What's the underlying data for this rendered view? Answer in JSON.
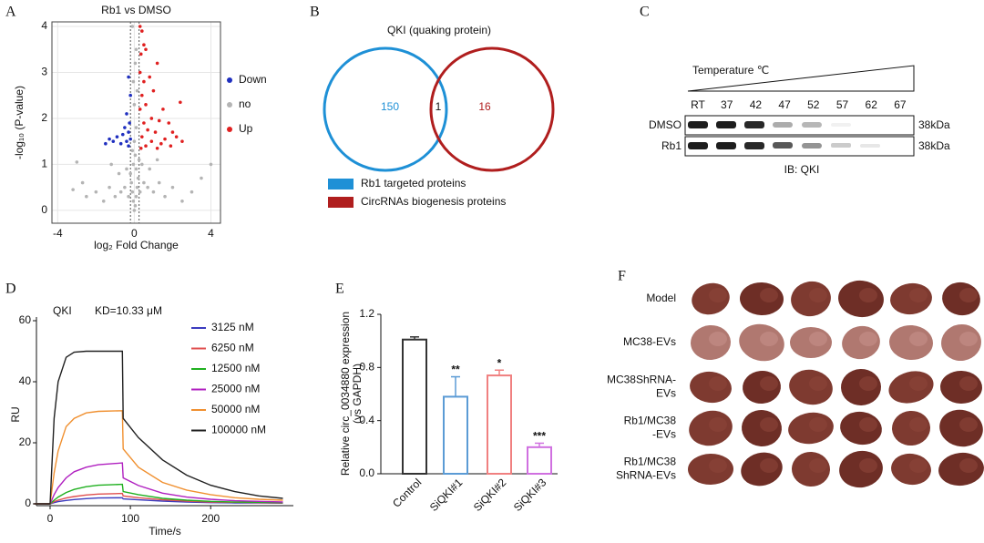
{
  "panels": [
    "A",
    "B",
    "C",
    "D",
    "E",
    "F"
  ],
  "chart_data": [
    {
      "type": "scatter",
      "title": "Rb1 vs DMSO",
      "xlabel": "log₂ Fold Change",
      "ylabel": "-log₁₀ (P-value)",
      "xlim": [
        -4.3,
        4.5
      ],
      "ylim": [
        -0.28,
        4.1
      ],
      "xticks": [
        -4,
        0,
        4
      ],
      "yticks": [
        0,
        1,
        2,
        3,
        4
      ],
      "grid": true,
      "vlines": [
        -0.2,
        0.25
      ],
      "legend": "right",
      "series": [
        {
          "name": "Down",
          "color": "#1f2fbf",
          "x": [
            -0.3,
            -0.2,
            -0.4,
            -0.25,
            -0.5,
            -0.3,
            -0.6,
            -0.2,
            -0.9,
            -1.1,
            -1.5,
            -0.4,
            -0.7,
            -0.3,
            -1.3
          ],
          "values": [
            2.9,
            2.5,
            2.1,
            1.9,
            1.8,
            1.7,
            1.65,
            1.55,
            1.6,
            1.5,
            1.45,
            1.5,
            1.45,
            1.4,
            1.55
          ]
        },
        {
          "name": "no",
          "color": "#b4b4b4",
          "x": [
            0,
            0.05,
            -0.05,
            0.1,
            -0.1,
            0.15,
            -0.15,
            0.2,
            -0.2,
            0.1,
            -0.05,
            0.25,
            0.05,
            -0.1,
            0,
            0.1,
            -0.3,
            0.3,
            -0.5,
            0.5,
            -0.7,
            0.7,
            -1.0,
            1.0,
            -1.3,
            1.3,
            -1.6,
            1.6,
            -2.0,
            2.0,
            -2.5,
            2.5,
            -3.0,
            3.0,
            -0.4,
            0.4,
            -0.8,
            0.8,
            -1.2,
            1.2,
            -2.7,
            -3.2,
            4.0,
            3.5,
            0,
            -0.05,
            0.1,
            -0.1,
            0.05,
            0.15
          ],
          "values": [
            0,
            0.1,
            0.2,
            0.3,
            0.4,
            0.5,
            0.6,
            0.7,
            0.8,
            0.9,
            1.0,
            1.1,
            1.2,
            1.3,
            1.5,
            1.8,
            0.3,
            0.4,
            0.5,
            0.6,
            0.4,
            0.5,
            0.3,
            0.4,
            0.5,
            0.6,
            0.2,
            0.3,
            0.4,
            0.5,
            0.3,
            0.2,
            1.05,
            0.4,
            0.9,
            1.0,
            0.8,
            0.9,
            1.0,
            1.1,
            0.6,
            0.45,
            1.0,
            0.7,
            2.3,
            2.8,
            3.5,
            4.0,
            3.2,
            2.6
          ]
        },
        {
          "name": "Up",
          "color": "#e02020",
          "x": [
            0.3,
            0.4,
            0.5,
            0.35,
            0.6,
            1.2,
            0.3,
            0.5,
            0.8,
            1.0,
            0.4,
            2.4,
            0.6,
            1.5,
            0.3,
            0.9,
            1.3,
            0.5,
            1.8,
            2.0,
            2.2,
            0.7,
            1.1,
            0.4,
            1.6,
            0.9,
            1.4,
            2.5,
            0.6,
            1.2,
            0.35,
            1.9
          ],
          "values": [
            4.0,
            3.9,
            3.6,
            3.4,
            3.5,
            3.2,
            3.0,
            2.8,
            2.9,
            2.6,
            2.5,
            2.35,
            2.3,
            2.2,
            2.2,
            2.0,
            1.95,
            1.9,
            1.9,
            1.7,
            1.6,
            1.75,
            1.7,
            1.6,
            1.55,
            1.5,
            1.45,
            1.5,
            1.4,
            1.35,
            1.35,
            1.4
          ]
        }
      ]
    },
    {
      "type": "line",
      "title": "QKI",
      "subtitle": "KD=10.33 μM",
      "xlabel": "Time/s",
      "ylabel": "RU",
      "xlim": [
        -17,
        303
      ],
      "ylim": [
        -0.6,
        60
      ],
      "xticks": [
        0,
        100,
        200
      ],
      "yticks": [
        0,
        20,
        40,
        60
      ],
      "x": [
        -20,
        0,
        5,
        10,
        20,
        30,
        45,
        60,
        90,
        91,
        110,
        140,
        170,
        200,
        230,
        260,
        290
      ],
      "series": [
        {
          "name": "3125 nM",
          "color": "#3b3bbf",
          "values": [
            0,
            0,
            0.4,
            0.7,
            1.1,
            1.4,
            1.7,
            1.9,
            2.0,
            1.6,
            1.3,
            0.9,
            0.6,
            0.4,
            0.3,
            0.3,
            0.2
          ]
        },
        {
          "name": "6250 nM",
          "color": "#e05050",
          "values": [
            0,
            0,
            0.7,
            1.2,
            1.9,
            2.4,
            2.9,
            3.2,
            3.4,
            2.6,
            2.0,
            1.3,
            0.9,
            0.6,
            0.5,
            0.4,
            0.3
          ]
        },
        {
          "name": "12500 nM",
          "color": "#20b020",
          "values": [
            0,
            0,
            1.2,
            2.2,
            3.7,
            4.7,
            5.6,
            6.1,
            6.4,
            4.0,
            3.0,
            1.8,
            1.2,
            0.8,
            0.6,
            0.5,
            0.4
          ]
        },
        {
          "name": "25000 nM",
          "color": "#b020c0",
          "values": [
            0,
            0,
            3.0,
            5.3,
            8.5,
            10.5,
            12.0,
            12.8,
            13.4,
            8.5,
            6.0,
            3.5,
            2.2,
            1.5,
            1.0,
            0.8,
            0.6
          ]
        },
        {
          "name": "50000 nM",
          "color": "#f09030",
          "values": [
            0,
            0,
            10.1,
            17.3,
            25.3,
            28.0,
            29.8,
            30.3,
            30.5,
            18.0,
            12.0,
            7.0,
            4.5,
            3.0,
            2.0,
            1.5,
            1.2
          ]
        },
        {
          "name": "100000 nM",
          "color": "#202020",
          "values": [
            0,
            0,
            28.0,
            40.0,
            48.0,
            49.7,
            50.0,
            50.0,
            50.0,
            28.0,
            21.7,
            14.4,
            9.4,
            6.1,
            4.0,
            2.6,
            1.8
          ]
        }
      ]
    },
    {
      "type": "bar",
      "ylabel": [
        "Relative circ_0034880 expression",
        "(vs GAPDH)"
      ],
      "categories": [
        "Control",
        "SiQKI#1",
        "SiQKI#2",
        "SiQKI#3"
      ],
      "values": [
        1.01,
        0.58,
        0.74,
        0.2
      ],
      "errors": [
        0.02,
        0.15,
        0.04,
        0.03
      ],
      "colors": [
        "#333333",
        "#5b9bd5",
        "#f08080",
        "#d070e0"
      ],
      "significance": [
        null,
        "**",
        "*",
        "***"
      ],
      "ylim": [
        0,
        1.2
      ],
      "yticks": [
        {
          "value": 0,
          "label": "0.0"
        },
        0.4,
        0.8,
        1.2
      ]
    }
  ],
  "venn": {
    "title": "QKI (quaking protein)",
    "left": "150",
    "both": "1",
    "right": "16",
    "legend": [
      {
        "label": "Rb1 targeted proteins",
        "color": "#1e90d6"
      },
      {
        "label": "CircRNAs biogenesis proteins",
        "color": "#b01e1e"
      }
    ]
  },
  "blot": {
    "gradient": "Temperature ℃",
    "lanes": [
      "RT",
      "37",
      "42",
      "47",
      "52",
      "57",
      "62",
      "67"
    ],
    "rows": [
      "DMSO",
      "Rb1"
    ],
    "size": "38kDa",
    "caption": "IB: QKI"
  },
  "photos": {
    "rows": [
      [
        "Model"
      ],
      [
        "MC38-EVs"
      ],
      [
        "MC38ShRNA-",
        "EVs"
      ],
      [
        "Rb1/MC38",
        "-EVs"
      ],
      [
        "Rb1/MC38",
        "ShRNA-EVs"
      ]
    ]
  }
}
